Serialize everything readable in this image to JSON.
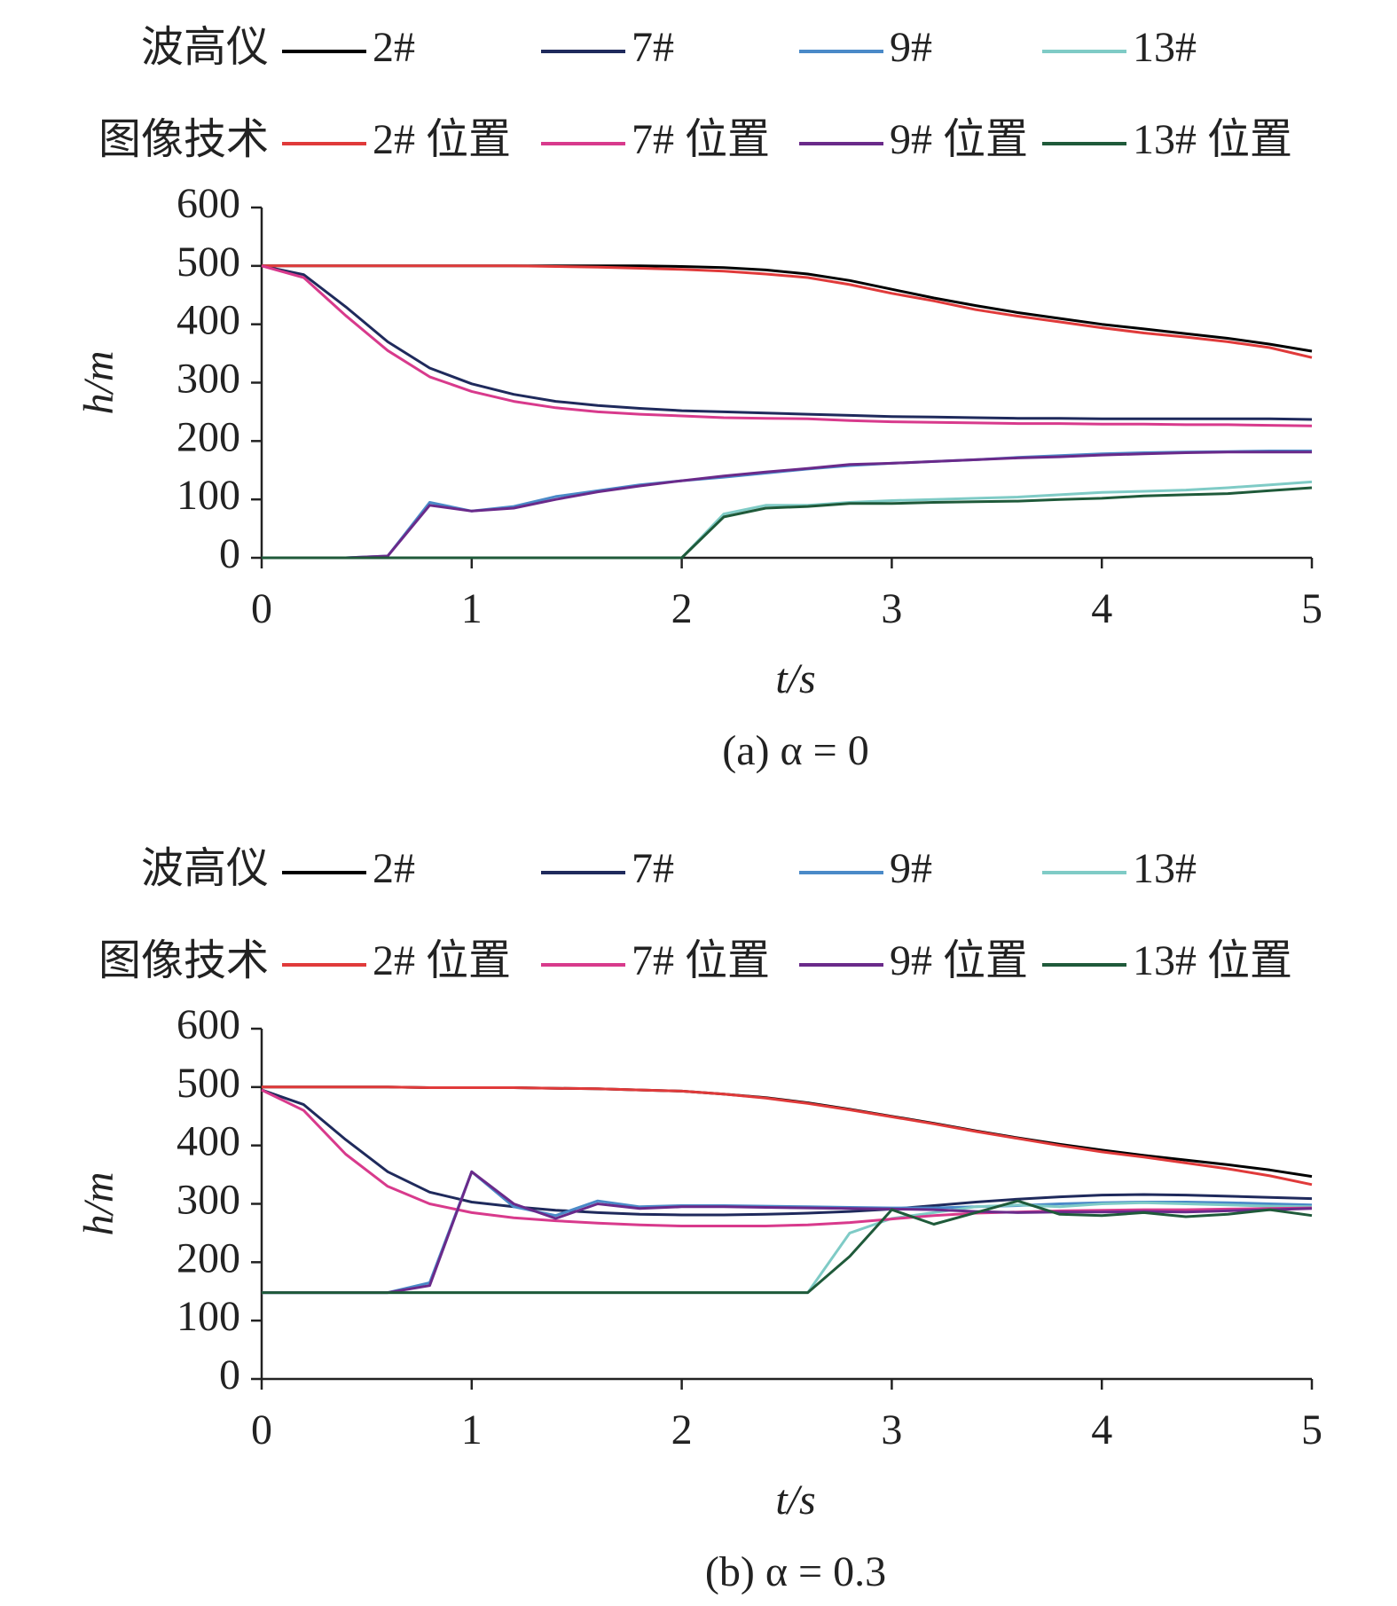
{
  "chart_data": [
    {
      "type": "line",
      "caption": "(a) α = 0",
      "xlabel": "t/s",
      "ylabel": "h/m",
      "legend_titles": [
        "波高仪",
        "图像技术"
      ],
      "xlim": [
        0,
        5
      ],
      "ylim": [
        0,
        600
      ],
      "xticks": [
        0,
        1,
        2,
        3,
        4,
        5
      ],
      "yticks": [
        0,
        100,
        200,
        300,
        400,
        500,
        600
      ],
      "x": [
        0,
        0.2,
        0.4,
        0.6,
        0.8,
        1.0,
        1.2,
        1.4,
        1.6,
        1.8,
        2.0,
        2.2,
        2.4,
        2.6,
        2.8,
        3.0,
        3.2,
        3.4,
        3.6,
        3.8,
        4.0,
        4.2,
        4.4,
        4.6,
        4.8,
        5.0
      ],
      "series": [
        {
          "name": "2#",
          "color": "#000000",
          "values": [
            500,
            500,
            500,
            500,
            500,
            500,
            500,
            500,
            500,
            500,
            499,
            497,
            493,
            486,
            475,
            460,
            445,
            432,
            420,
            410,
            400,
            392,
            384,
            376,
            366,
            354
          ]
        },
        {
          "name": "7#",
          "color": "#1f2a5c",
          "values": [
            500,
            485,
            430,
            370,
            325,
            298,
            280,
            268,
            261,
            256,
            252,
            250,
            248,
            246,
            244,
            242,
            241,
            240,
            239,
            239,
            238,
            238,
            238,
            238,
            238,
            237
          ]
        },
        {
          "name": "9#",
          "color": "#4a8ac8",
          "values": [
            0,
            0,
            0,
            3,
            95,
            80,
            88,
            105,
            115,
            125,
            132,
            138,
            145,
            152,
            158,
            162,
            165,
            168,
            172,
            175,
            178,
            180,
            181,
            182,
            183,
            183
          ]
        },
        {
          "name": "13#",
          "color": "#7fcbc6",
          "values": [
            0,
            0,
            0,
            0,
            0,
            0,
            0,
            0,
            0,
            0,
            0,
            75,
            90,
            90,
            95,
            98,
            100,
            102,
            104,
            108,
            112,
            114,
            116,
            120,
            125,
            130
          ]
        },
        {
          "name": "2# 位置",
          "color": "#e03a3a",
          "values": [
            500,
            500,
            500,
            500,
            500,
            500,
            500,
            499,
            498,
            496,
            494,
            491,
            486,
            480,
            468,
            453,
            440,
            425,
            414,
            404,
            394,
            385,
            378,
            370,
            360,
            343
          ]
        },
        {
          "name": "7# 位置",
          "color": "#d83a8c",
          "values": [
            500,
            480,
            415,
            355,
            310,
            285,
            268,
            257,
            250,
            246,
            243,
            240,
            239,
            238,
            235,
            233,
            232,
            231,
            230,
            230,
            229,
            229,
            228,
            228,
            227,
            226
          ]
        },
        {
          "name": "9# 位置",
          "color": "#6a2a8a",
          "values": [
            0,
            0,
            0,
            3,
            90,
            80,
            85,
            100,
            113,
            123,
            132,
            140,
            147,
            153,
            160,
            162,
            165,
            168,
            171,
            173,
            176,
            178,
            180,
            181,
            181,
            181
          ]
        },
        {
          "name": "13# 位置",
          "color": "#1f5a3a",
          "values": [
            0,
            0,
            0,
            0,
            0,
            0,
            0,
            0,
            0,
            0,
            0,
            70,
            85,
            88,
            93,
            93,
            95,
            96,
            97,
            100,
            102,
            106,
            108,
            110,
            115,
            120
          ]
        }
      ]
    },
    {
      "type": "line",
      "caption": "(b) α = 0.3",
      "xlabel": "t/s",
      "ylabel": "h/m",
      "legend_titles": [
        "波高仪",
        "图像技术"
      ],
      "xlim": [
        0,
        5
      ],
      "ylim": [
        0,
        600
      ],
      "xticks": [
        0,
        1,
        2,
        3,
        4,
        5
      ],
      "yticks": [
        0,
        100,
        200,
        300,
        400,
        500,
        600
      ],
      "x": [
        0,
        0.2,
        0.4,
        0.6,
        0.8,
        1.0,
        1.2,
        1.4,
        1.6,
        1.8,
        2.0,
        2.2,
        2.4,
        2.6,
        2.8,
        3.0,
        3.2,
        3.4,
        3.6,
        3.8,
        4.0,
        4.2,
        4.4,
        4.6,
        4.8,
        5.0
      ],
      "series": [
        {
          "name": "2#",
          "color": "#000000",
          "values": [
            500,
            500,
            500,
            500,
            499,
            499,
            499,
            498,
            497,
            495,
            493,
            488,
            482,
            473,
            462,
            450,
            438,
            425,
            413,
            402,
            392,
            383,
            375,
            367,
            358,
            347
          ]
        },
        {
          "name": "7#",
          "color": "#1f2a5c",
          "values": [
            495,
            470,
            410,
            355,
            320,
            303,
            295,
            289,
            285,
            282,
            281,
            281,
            282,
            284,
            287,
            291,
            297,
            303,
            308,
            312,
            315,
            316,
            315,
            313,
            311,
            309
          ]
        },
        {
          "name": "9#",
          "color": "#4a8ac8",
          "values": [
            148,
            148,
            148,
            148,
            165,
            355,
            295,
            280,
            305,
            295,
            297,
            297,
            296,
            295,
            294,
            293,
            293,
            295,
            297,
            300,
            302,
            303,
            303,
            302,
            300,
            298
          ]
        },
        {
          "name": "13#",
          "color": "#7fcbc6",
          "values": [
            148,
            148,
            148,
            148,
            148,
            148,
            148,
            148,
            148,
            148,
            148,
            148,
            148,
            148,
            250,
            275,
            285,
            295,
            298,
            295,
            300,
            302,
            300,
            298,
            296,
            295
          ]
        },
        {
          "name": "2# 位置",
          "color": "#e03a3a",
          "values": [
            500,
            500,
            500,
            500,
            499,
            499,
            499,
            498,
            497,
            495,
            493,
            488,
            481,
            472,
            461,
            449,
            437,
            424,
            412,
            400,
            389,
            380,
            370,
            360,
            348,
            333
          ]
        },
        {
          "name": "7# 位置",
          "color": "#d83a8c",
          "values": [
            495,
            460,
            385,
            330,
            300,
            285,
            276,
            271,
            267,
            264,
            262,
            262,
            262,
            264,
            268,
            274,
            280,
            284,
            286,
            288,
            289,
            290,
            290,
            291,
            292,
            293
          ]
        },
        {
          "name": "9# 位置",
          "color": "#6a2a8a",
          "values": [
            148,
            148,
            148,
            148,
            160,
            355,
            300,
            275,
            300,
            292,
            295,
            295,
            294,
            293,
            292,
            291,
            290,
            287,
            285,
            286,
            286,
            287,
            286,
            288,
            290,
            292
          ]
        },
        {
          "name": "13# 位置",
          "color": "#1f5a3a",
          "values": [
            148,
            148,
            148,
            148,
            148,
            148,
            148,
            148,
            148,
            148,
            148,
            148,
            148,
            148,
            210,
            290,
            265,
            285,
            305,
            282,
            280,
            285,
            278,
            282,
            290,
            280
          ]
        }
      ]
    }
  ]
}
